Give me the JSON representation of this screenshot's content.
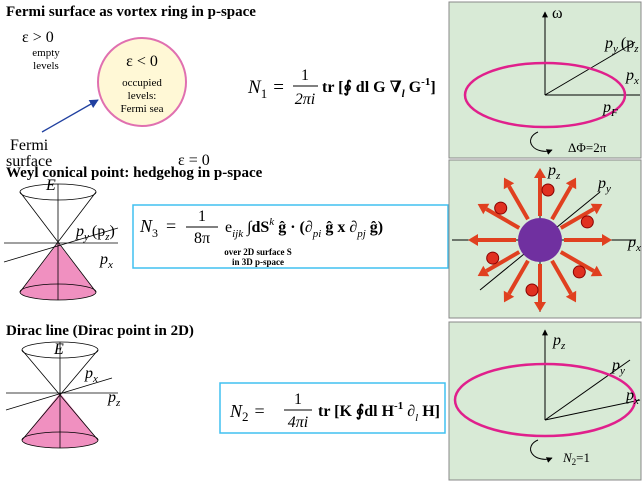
{
  "fermi": {
    "title": "Fermi surface as vortex ring in p-space",
    "eps_pos": "ε > 0",
    "empty_lines": [
      "empty",
      "levels"
    ],
    "eps_neg": "ε < 0",
    "occupied_lines": [
      "occupied",
      "levels:",
      "Fermi sea"
    ],
    "surface_lines": [
      "Fermi",
      "surface"
    ],
    "eps_zero": "ε = 0",
    "formula": {
      "lhs": "N",
      "lhs_sub": "1",
      "eq": "=",
      "num": "1",
      "den": "2πi",
      "body": "tr [∮ dl G ∇",
      "nabla_sub": "l",
      "g": " G",
      "sup": "-1",
      "close": "]"
    },
    "panel": {
      "omega": "ω",
      "py": "p",
      "py_sub": "y",
      "pz_open": "(p",
      "pz_sub": "z",
      "px": "p",
      "px_sub": "x",
      "pf": "p",
      "pf_sub": "F",
      "flux": "ΔΦ=2π"
    }
  },
  "weyl": {
    "title": "Weyl conical point: hedgehog in p-space",
    "cone": {
      "e": "E",
      "py": "p",
      "py_sub": "y",
      "pz": "(p",
      "pz_sub": "z",
      "pz_close": ")",
      "px": "p",
      "px_sub": "x"
    },
    "formula": {
      "lhs": "N",
      "lhs_sub": "3",
      "eq": "=",
      "num": "1",
      "den": "8π",
      "e": "e",
      "e_sub": "ijk",
      "int": "∫dS",
      "int_sup": "k",
      "g1": " ĝ · (∂",
      "d1_sub": "pi",
      "g2": " ĝ x ∂",
      "d2_sub": "pj",
      "g3": " ĝ)"
    },
    "note_lines": [
      "over 2D surface S",
      "in 3D p-space"
    ],
    "panel": {
      "pz": "p",
      "pz_sub": "z",
      "py": "p",
      "py_sub": "y",
      "px": "p",
      "px_sub": "x"
    }
  },
  "dirac": {
    "title": "Dirac line (Dirac point in 2D)",
    "cone": {
      "e": "E",
      "px": "p",
      "px_sub": "x",
      "pz": "p",
      "pz_sub": "z"
    },
    "formula": {
      "lhs": "N",
      "lhs_sub": "2",
      "eq": "=",
      "num": "1",
      "den": "4πi",
      "body": "tr [K ∮dl H",
      "sup": "-1",
      "d": " ∂",
      "d_sub": "l",
      "close": " H]"
    },
    "panel": {
      "pz": "p",
      "pz_sub": "z",
      "py": "p",
      "py_sub": "y",
      "px": "p",
      "px_sub": "x",
      "n": "N",
      "n_sub": "2",
      "n_val": "=1"
    }
  }
}
